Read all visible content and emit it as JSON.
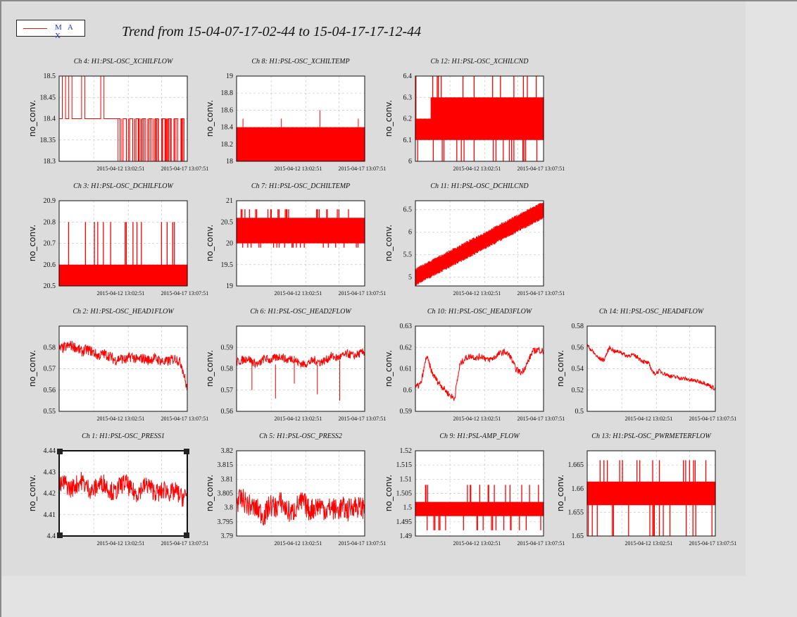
{
  "title": "Trend from 15-04-07-17-02-44 to 15-04-17-17-12-44",
  "legend": {
    "label": "M A X",
    "line_color": "#e31a1a",
    "text_color": "#2233cc"
  },
  "colors": {
    "series": "#ff0000",
    "canvas": "#dcdcdc",
    "outer": "#e3e3e3"
  },
  "chart_data": [
    {
      "type": "line",
      "title": "Ch 4: H1:PSL-OSC_XCHILFLOW",
      "ylabel": "no_conv.",
      "ylim": [
        18.3,
        18.5
      ],
      "yticks": [
        "18.3",
        "18.35",
        "18.4",
        "18.45",
        "18.5"
      ],
      "xticks": [
        "2015-04-12 13:02:51",
        "2015-04-17 13:07:51"
      ],
      "grid": true,
      "series": [
        {
          "name": "MAX",
          "style": "step",
          "values": [
            18.4,
            18.5,
            18.4,
            18.5,
            18.4,
            18.4,
            18.4,
            18.5,
            18.4,
            18.4,
            18.4,
            18.4,
            18.4,
            18.5,
            18.4,
            18.4,
            18.4,
            18.4,
            18.4,
            18.3,
            18.4,
            18.3,
            18.4,
            18.3,
            18.4,
            18.3,
            18.4,
            18.3,
            18.4,
            18.3,
            18.4,
            18.3,
            18.4,
            18.3,
            18.4,
            18.3,
            18.4,
            18.3,
            18.4,
            18.3
          ]
        }
      ]
    },
    {
      "type": "line",
      "title": "Ch 8: H1:PSL-OSC_XCHILTEMP",
      "ylabel": "no_conv.",
      "ylim": [
        18,
        19
      ],
      "yticks": [
        "18",
        "18.2",
        "18.4",
        "18.6",
        "18.8",
        "19"
      ],
      "xticks": [
        "2015-04-12 13:02:51",
        "2015-04-17 13:07:51"
      ],
      "grid": true,
      "series": [
        {
          "name": "MAX",
          "style": "band",
          "low": 18.0,
          "high": 18.4,
          "spikes": [
            18.5,
            18.5,
            18.6,
            18.5
          ]
        }
      ]
    },
    {
      "type": "line",
      "title": "Ch 12: H1:PSL-OSC_XCHILCND",
      "ylabel": "no_conv.",
      "ylim": [
        6,
        6.4
      ],
      "yticks": [
        "6",
        "6.1",
        "6.2",
        "6.3",
        "6.4"
      ],
      "xticks": [
        "2015-04-12 13:02:51",
        "2015-04-17 13:07:51"
      ],
      "grid": true,
      "series": [
        {
          "name": "MAX",
          "style": "band",
          "low": 6.1,
          "high": 6.3,
          "start_high": 6.2,
          "spikes_low": 6.0,
          "spikes_high": 6.4
        }
      ]
    },
    {
      "type": "line",
      "title": "Ch 3: H1:PSL-OSC_DCHILFLOW",
      "ylabel": "no_conv.",
      "ylim": [
        20.5,
        20.9
      ],
      "yticks": [
        "20.5",
        "20.6",
        "20.7",
        "20.8",
        "20.9"
      ],
      "xticks": [
        "2015-04-12 13:02:51",
        "2015-04-17 13:07:51"
      ],
      "grid": true,
      "series": [
        {
          "name": "MAX",
          "style": "band",
          "low": 20.5,
          "high": 20.6,
          "spikes_high": 20.8
        }
      ]
    },
    {
      "type": "line",
      "title": "Ch 7: H1:PSL-OSC_DCHILTEMP",
      "ylabel": "no_conv.",
      "ylim": [
        19,
        21
      ],
      "yticks": [
        "19",
        "19.5",
        "20",
        "20.5",
        "21"
      ],
      "xticks": [
        "2015-04-12 13:02:51",
        "2015-04-17 13:07:51"
      ],
      "grid": true,
      "series": [
        {
          "name": "MAX",
          "style": "band",
          "low": 20.0,
          "high": 20.6,
          "spikes_high": 20.8,
          "spikes_low": 19.9
        }
      ]
    },
    {
      "type": "line",
      "title": "Ch 11: H1:PSL-OSC_DCHILCND",
      "ylabel": "no_conv.",
      "ylim": [
        4.8,
        6.7
      ],
      "yticks": [
        "5",
        "5.5",
        "6",
        "6.5"
      ],
      "xticks": [
        "2015-04-12 13:02:51",
        "2015-04-17 13:07:51"
      ],
      "grid": true,
      "series": [
        {
          "name": "MAX",
          "style": "rising_band",
          "start": 5.0,
          "end": 6.5,
          "width": 0.3
        }
      ]
    },
    {
      "type": "line",
      "title": "Ch 2: H1:PSL-OSC_HEAD1FLOW",
      "ylabel": "no_conv.",
      "ylim": [
        0.55,
        0.59
      ],
      "yticks": [
        "0.55",
        "0.56",
        "0.57",
        "0.58"
      ],
      "xticks": [
        "2015-04-12 13:02:51",
        "2015-04-17 13:07:51"
      ],
      "grid": true,
      "series": [
        {
          "name": "MAX",
          "style": "noise",
          "values": [
            0.579,
            0.58,
            0.581,
            0.58,
            0.578,
            0.579,
            0.578,
            0.576,
            0.577,
            0.576,
            0.574,
            0.575,
            0.574,
            0.576,
            0.574,
            0.575,
            0.574,
            0.575,
            0.574,
            0.573,
            0.574,
            0.575,
            0.572,
            0.56
          ],
          "amp": 0.0025
        }
      ]
    },
    {
      "type": "line",
      "title": "Ch 6: H1:PSL-OSC_HEAD2FLOW",
      "ylabel": "no_conv.",
      "ylim": [
        0.56,
        0.6
      ],
      "yticks": [
        "0.56",
        "0.57",
        "0.58",
        "0.59"
      ],
      "xticks": [
        "2015-04-12 13:02:51",
        "2015-04-17 13:07:51"
      ],
      "grid": true,
      "series": [
        {
          "name": "MAX",
          "style": "noise",
          "values": [
            0.583,
            0.584,
            0.585,
            0.583,
            0.582,
            0.585,
            0.584,
            0.585,
            0.586,
            0.584,
            0.585,
            0.583,
            0.582,
            0.583,
            0.584,
            0.583,
            0.584,
            0.586,
            0.585,
            0.586,
            0.587,
            0.586,
            0.587,
            0.588
          ],
          "amp": 0.002,
          "dips": [
            0.57,
            0.566,
            0.573,
            0.568,
            0.565
          ]
        }
      ]
    },
    {
      "type": "line",
      "title": "Ch 10: H1:PSL-OSC_HEAD3FLOW",
      "ylabel": "no_conv.",
      "ylim": [
        0.59,
        0.63
      ],
      "yticks": [
        "0.59",
        "0.6",
        "0.61",
        "0.62",
        "0.63"
      ],
      "xticks": [
        "2015-04-12 13:02:51",
        "2015-04-17 13:07:51"
      ],
      "grid": true,
      "series": [
        {
          "name": "MAX",
          "style": "noise",
          "values": [
            0.601,
            0.603,
            0.616,
            0.608,
            0.604,
            0.601,
            0.598,
            0.596,
            0.612,
            0.615,
            0.616,
            0.615,
            0.616,
            0.614,
            0.615,
            0.617,
            0.618,
            0.616,
            0.61,
            0.608,
            0.612,
            0.618,
            0.619,
            0.618
          ],
          "amp": 0.0015
        }
      ]
    },
    {
      "type": "line",
      "title": "Ch 14: H1:PSL-OSC_HEAD4FLOW",
      "ylabel": "no_conv.",
      "ylim": [
        0.5,
        0.58
      ],
      "yticks": [
        "0.5",
        "0.52",
        "0.54",
        "0.56",
        "0.58"
      ],
      "xticks": [
        "2015-04-12 13:02:51",
        "2015-04-17 13:07:51"
      ],
      "grid": true,
      "series": [
        {
          "name": "MAX",
          "style": "noise",
          "values": [
            0.562,
            0.556,
            0.55,
            0.548,
            0.56,
            0.556,
            0.556,
            0.552,
            0.553,
            0.551,
            0.547,
            0.545,
            0.535,
            0.538,
            0.535,
            0.533,
            0.532,
            0.531,
            0.53,
            0.529,
            0.528,
            0.527,
            0.524,
            0.521
          ],
          "amp": 0.002
        }
      ]
    },
    {
      "type": "line",
      "title": "Ch 1: H1:PSL-OSC_PRESS1",
      "ylabel": "no_conv.",
      "ylim": [
        4.4,
        4.44
      ],
      "yticks": [
        "4.4",
        "4.41",
        "4.42",
        "4.43",
        "4.44"
      ],
      "xticks": [
        "2015-04-12 13:02:51",
        "2015-04-17 13:07:51"
      ],
      "grid": true,
      "series": [
        {
          "name": "MAX",
          "style": "noise",
          "values": [
            4.423,
            4.425,
            4.422,
            4.424,
            4.426,
            4.423,
            4.421,
            4.424,
            4.425,
            4.422,
            4.42,
            4.424,
            4.425,
            4.421,
            4.42,
            4.423,
            4.424,
            4.421,
            4.42,
            4.422,
            4.42,
            4.421,
            4.418,
            4.419
          ],
          "amp": 0.0045
        }
      ]
    },
    {
      "type": "line",
      "title": "Ch 5: H1:PSL-OSC_PRESS2",
      "ylabel": "no_conv.",
      "ylim": [
        3.79,
        3.82
      ],
      "yticks": [
        "3.79",
        "3.795",
        "3.8",
        "3.805",
        "3.81",
        "3.815",
        "3.82"
      ],
      "xticks": [
        "2015-04-12 13:02:51",
        "2015-04-17 13:07:51"
      ],
      "grid": true,
      "series": [
        {
          "name": "MAX",
          "style": "noise",
          "values": [
            3.802,
            3.803,
            3.801,
            3.8,
            3.799,
            3.797,
            3.801,
            3.8,
            3.802,
            3.799,
            3.798,
            3.801,
            3.802,
            3.799,
            3.8,
            3.801,
            3.799,
            3.8,
            3.799,
            3.8,
            3.799,
            3.801,
            3.8,
            3.8
          ],
          "amp": 0.004
        }
      ]
    },
    {
      "type": "line",
      "title": "Ch 9: H1:PSL-AMP_FLOW",
      "ylabel": "no_conv.",
      "ylim": [
        1.49,
        1.52
      ],
      "yticks": [
        "1.49",
        "1.495",
        "1.5",
        "1.505",
        "1.51",
        "1.515",
        "1.52"
      ],
      "xticks": [
        "2015-04-12 13:02:51",
        "2015-04-17 13:07:51"
      ],
      "grid": true,
      "series": [
        {
          "name": "MAX",
          "style": "band",
          "low": 1.497,
          "high": 1.502,
          "spikes_high": 1.508,
          "spikes_low": 1.492
        }
      ]
    },
    {
      "type": "line",
      "title": "Ch 13: H1:PSL-OSC_PWRMETERFLOW",
      "ylabel": "no_conv.",
      "ylim": [
        1.65,
        1.668
      ],
      "yticks": [
        "1.65",
        "1.655",
        "1.66",
        "1.665"
      ],
      "xticks": [
        "2015-04-12 13:02:51",
        "2015-04-17 13:07:51"
      ],
      "grid": true,
      "series": [
        {
          "name": "MAX",
          "style": "band",
          "low": 1.6565,
          "high": 1.6615,
          "spikes_high": 1.666,
          "spikes_low": 1.65
        }
      ]
    }
  ]
}
